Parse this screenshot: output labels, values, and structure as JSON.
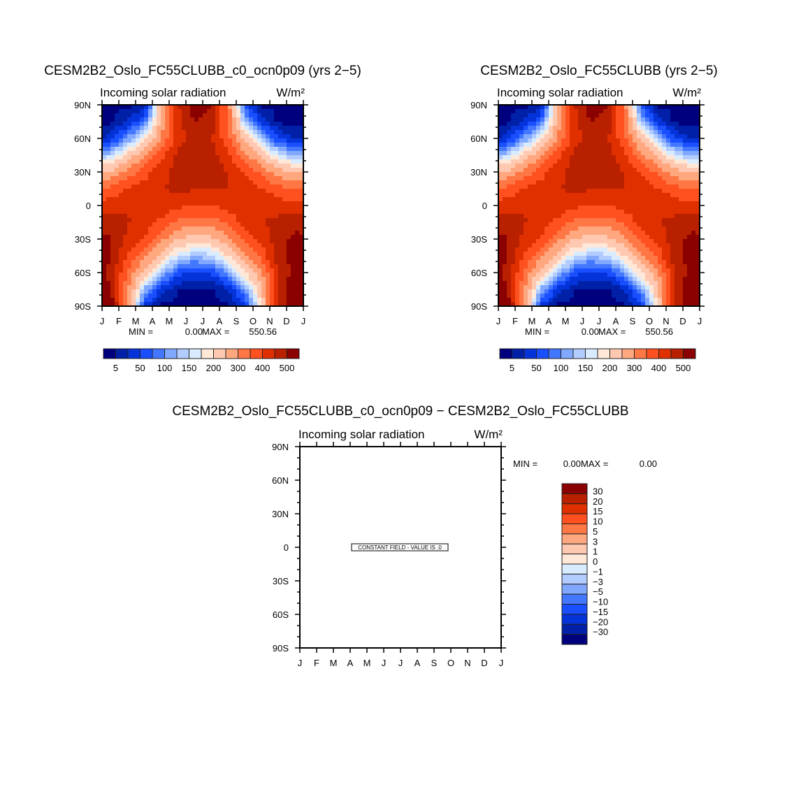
{
  "chart_data": {
    "type": "heatmap",
    "variable": "Incoming solar radiation",
    "units": "W/m²",
    "x_tick_labels": [
      "J",
      "F",
      "M",
      "A",
      "M",
      "J",
      "J",
      "A",
      "S",
      "O",
      "N",
      "D",
      "J"
    ],
    "y_tick_labels": [
      "90N",
      "60N",
      "30N",
      "0",
      "30S",
      "60S",
      "90S"
    ],
    "ylim": [
      -90,
      90
    ],
    "field_latitudes": [
      90,
      75,
      60,
      45,
      30,
      15,
      0,
      -15,
      -30,
      -45,
      -60,
      -75,
      -90
    ],
    "field_months": [
      "Jan",
      "Feb",
      "Mar",
      "Apr",
      "May",
      "Jun",
      "Jul",
      "Aug",
      "Sep",
      "Oct",
      "Nov",
      "Dec"
    ],
    "field": [
      [
        0,
        0,
        0,
        240,
        445,
        525,
        500,
        330,
        60,
        0,
        0,
        0
      ],
      [
        0,
        25,
        75,
        255,
        430,
        505,
        480,
        340,
        130,
        40,
        0,
        0
      ],
      [
        30,
        100,
        185,
        300,
        430,
        470,
        455,
        360,
        230,
        125,
        50,
        20
      ],
      [
        140,
        210,
        290,
        380,
        460,
        480,
        470,
        415,
        320,
        235,
        155,
        120
      ],
      [
        255,
        320,
        375,
        430,
        475,
        480,
        475,
        450,
        395,
        335,
        270,
        235
      ],
      [
        360,
        400,
        425,
        445,
        460,
        455,
        455,
        450,
        430,
        405,
        370,
        345
      ],
      [
        430,
        445,
        440,
        430,
        415,
        400,
        400,
        420,
        435,
        440,
        425,
        420
      ],
      [
        480,
        455,
        430,
        390,
        340,
        320,
        325,
        365,
        415,
        445,
        465,
        480
      ],
      [
        505,
        440,
        395,
        320,
        250,
        225,
        235,
        285,
        365,
        420,
        480,
        515
      ],
      [
        505,
        400,
        320,
        230,
        155,
        130,
        140,
        200,
        290,
        370,
        475,
        525
      ],
      [
        490,
        340,
        230,
        135,
        65,
        40,
        50,
        105,
        200,
        290,
        455,
        520
      ],
      [
        505,
        320,
        120,
        40,
        5,
        0,
        0,
        25,
        100,
        230,
        460,
        545
      ],
      [
        550,
        306,
        45,
        0,
        0,
        0,
        0,
        0,
        30,
        210,
        445,
        560
      ]
    ],
    "levels": [
      5,
      25,
      50,
      75,
      100,
      125,
      150,
      175,
      200,
      250,
      300,
      350,
      400,
      450,
      500
    ],
    "colorbar_labels": [
      "5",
      "50",
      "100",
      "150",
      "200",
      "300",
      "400",
      "500"
    ],
    "colors": [
      "#00007f",
      "#0020a8",
      "#0434d9",
      "#1a4fff",
      "#4477ff",
      "#80a8ff",
      "#b3ccff",
      "#d9ebff",
      "#ffe8d8",
      "#ffc8b0",
      "#ffa880",
      "#ff7744",
      "#ff5020",
      "#e03000",
      "#b82000",
      "#8b0000"
    ],
    "panels": [
      {
        "title": "CESM2B2_Oslo_FC55CLUBB_c0_ocn0p09 (yrs 2−5)",
        "subtitle": "Incoming solar radiation",
        "units": "W/m²",
        "min_label": "MIN =",
        "min": "0.00",
        "max_label": "MAX =",
        "max": "550.56"
      },
      {
        "title": "CESM2B2_Oslo_FC55CLUBB (yrs 2−5)",
        "subtitle": "Incoming solar radiation",
        "units": "W/m²",
        "min_label": "MIN =",
        "min": "0.00",
        "max_label": "MAX =",
        "max": "550.56"
      },
      {
        "title": "CESM2B2_Oslo_FC55CLUBB_c0_ocn0p09 − CESM2B2_Oslo_FC55CLUBB",
        "subtitle": "Incoming solar radiation",
        "units": "W/m²",
        "min_label": "MIN =",
        "min": "0.00",
        "max_label": "MAX =",
        "max": "0.00",
        "constant_label": "CONSTANT FIELD - VALUE IS .0",
        "colorbar_labels": [
          "30",
          "20",
          "15",
          "10",
          "5",
          "3",
          "1",
          "0",
          "−1",
          "−3",
          "−5",
          "−10",
          "−15",
          "−20",
          "−30"
        ]
      }
    ]
  }
}
